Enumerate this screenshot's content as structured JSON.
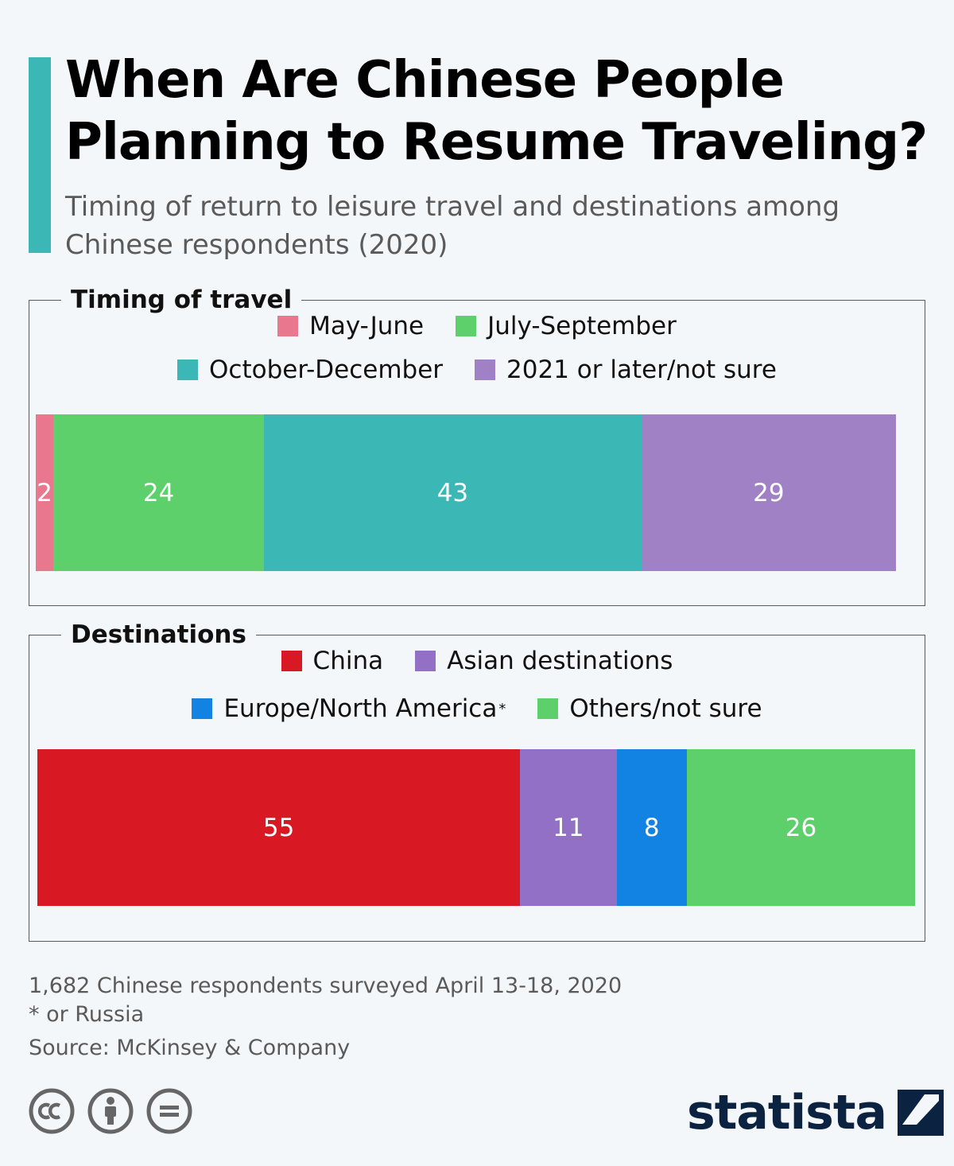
{
  "title": "When Are Chinese People Planning to Resume Traveling?",
  "subtitle": "Timing of return to leisure travel and destinations among Chinese respondents (2020)",
  "colors": {
    "accent": "#3bb7b5",
    "background": "#f4f7fa"
  },
  "chart_data": [
    {
      "type": "bar",
      "stacked": true,
      "orientation": "horizontal",
      "title": "Timing of travel",
      "legend_position": "top",
      "series": [
        {
          "name": "May-June",
          "values": [
            2
          ],
          "color": "#e9788e"
        },
        {
          "name": "July-September",
          "values": [
            24
          ],
          "color": "#5ed06b"
        },
        {
          "name": "October-December",
          "values": [
            43
          ],
          "color": "#3bb7b5"
        },
        {
          "name": "2021 or later/not sure",
          "values": [
            29
          ],
          "color": "#a181c6"
        }
      ]
    },
    {
      "type": "bar",
      "stacked": true,
      "orientation": "horizontal",
      "title": "Destinations",
      "legend_position": "top",
      "series": [
        {
          "name": "China",
          "values": [
            55
          ],
          "color": "#d81823"
        },
        {
          "name": "Asian destinations",
          "values": [
            11
          ],
          "color": "#9170c6"
        },
        {
          "name": "Europe/North America",
          "values": [
            8
          ],
          "color": "#1283e2",
          "note_marker": "*"
        },
        {
          "name": "Others/not sure",
          "values": [
            26
          ],
          "color": "#5ed06b"
        }
      ]
    }
  ],
  "footer": {
    "note": "1,682 Chinese respondents surveyed April 13-18, 2020",
    "asterisk_note": "* or Russia",
    "source": "Source: McKinsey & Company"
  },
  "brand": {
    "name": "statista",
    "color": "#0b2340"
  },
  "license_icons": [
    "creative-commons-icon",
    "attribution-icon",
    "no-derivatives-icon"
  ]
}
